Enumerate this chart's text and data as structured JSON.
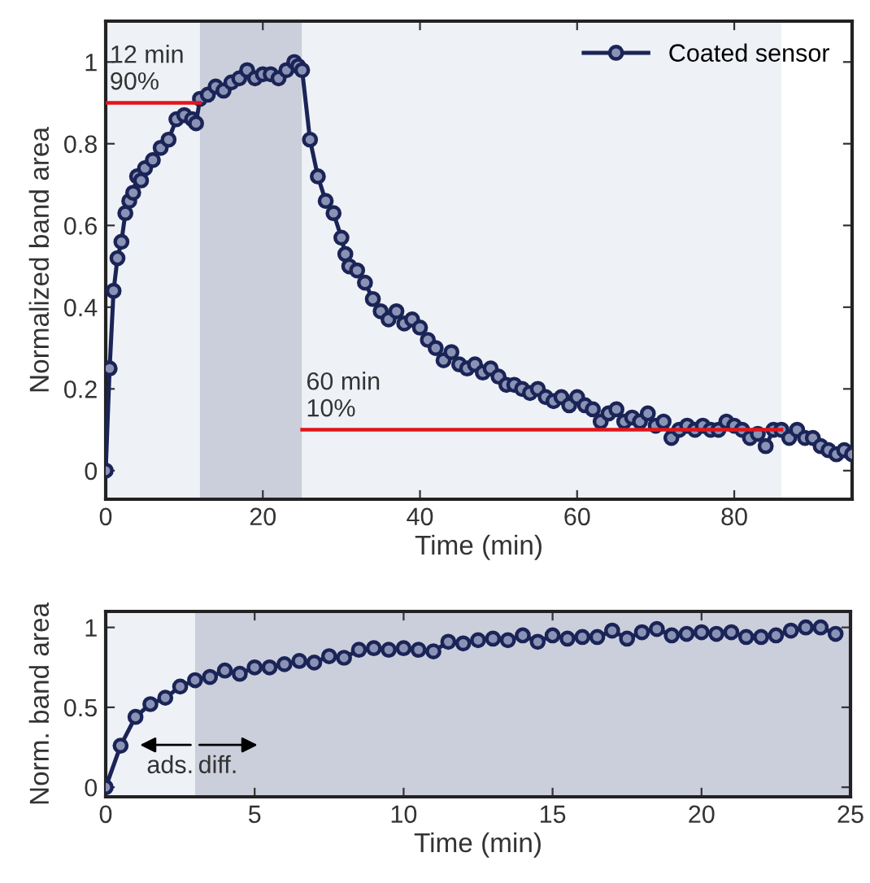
{
  "chart_data": [
    {
      "type": "line",
      "xlabel": "Time (min)",
      "ylabel": "Normalized band area",
      "xlim": [
        0,
        95
      ],
      "ylim": [
        -0.07,
        1.1
      ],
      "xticks": [
        0,
        20,
        40,
        60,
        80
      ],
      "yticks": [
        0,
        0.2,
        0.4,
        0.6,
        0.8,
        1
      ],
      "grid": false,
      "legend": "top right",
      "marker": "circle",
      "line_style": "solid",
      "bands": [
        {
          "axis": "x",
          "from": 0,
          "to": 12,
          "color": "#eef1f6"
        },
        {
          "axis": "x",
          "from": 12,
          "to": 25,
          "color": "#cbcfdc"
        },
        {
          "axis": "x",
          "from": 25,
          "to": 86,
          "color": "#eef1f6"
        }
      ],
      "annotations": [
        {
          "text": "12 min\n90%",
          "x": 0.5,
          "y": 0.92
        },
        {
          "text": "60 min\n10%",
          "x": 25.5,
          "y": 0.12
        }
      ],
      "series": [
        {
          "name": "Coated sensor",
          "color": "#1a2456",
          "x": [
            0,
            0.5,
            1,
            1.5,
            2,
            2.5,
            3,
            3.5,
            4,
            4.5,
            5,
            6,
            7,
            8,
            9,
            10,
            11,
            11.5,
            12,
            13,
            14,
            15,
            16,
            17,
            18,
            19,
            20,
            21,
            22,
            23,
            24,
            24.5,
            25,
            26,
            27,
            28,
            29,
            30,
            30.5,
            31,
            32,
            33,
            34,
            35,
            36,
            37,
            38,
            39,
            40,
            41,
            42,
            43,
            44,
            45,
            46,
            47,
            48,
            49,
            50,
            51,
            52,
            53,
            54,
            55,
            56,
            57,
            58,
            59,
            60,
            61,
            62,
            63,
            64,
            65,
            66,
            67,
            68,
            69,
            70,
            71,
            72,
            73,
            74,
            75,
            76,
            77,
            78,
            79,
            80,
            81,
            82,
            83,
            84,
            85,
            86,
            87,
            88,
            89,
            90,
            91,
            92,
            93,
            94,
            95
          ],
          "values": [
            0,
            0.25,
            0.44,
            0.52,
            0.56,
            0.63,
            0.66,
            0.68,
            0.72,
            0.71,
            0.74,
            0.76,
            0.79,
            0.81,
            0.86,
            0.87,
            0.86,
            0.85,
            0.91,
            0.92,
            0.94,
            0.93,
            0.95,
            0.96,
            0.98,
            0.96,
            0.97,
            0.97,
            0.96,
            0.98,
            1.0,
            0.99,
            0.98,
            0.81,
            0.72,
            0.66,
            0.63,
            0.57,
            0.53,
            0.5,
            0.49,
            0.46,
            0.42,
            0.39,
            0.37,
            0.39,
            0.36,
            0.37,
            0.35,
            0.32,
            0.3,
            0.27,
            0.29,
            0.26,
            0.25,
            0.26,
            0.24,
            0.25,
            0.23,
            0.21,
            0.21,
            0.2,
            0.19,
            0.2,
            0.18,
            0.17,
            0.18,
            0.16,
            0.18,
            0.16,
            0.15,
            0.12,
            0.14,
            0.15,
            0.12,
            0.13,
            0.12,
            0.14,
            0.11,
            0.12,
            0.08,
            0.1,
            0.11,
            0.1,
            0.11,
            0.1,
            0.1,
            0.12,
            0.11,
            0.1,
            0.08,
            0.09,
            0.06,
            0.1,
            0.1,
            0.08,
            0.1,
            0.08,
            0.08,
            0.06,
            0.05,
            0.04,
            0.05,
            0.04
          ]
        },
        {
          "type": "line",
          "marker": "none",
          "color": "#e0161b",
          "x": [
            0,
            12
          ],
          "values": [
            0.9,
            0.9
          ]
        },
        {
          "type": "line",
          "marker": "none",
          "color": "#e0161b",
          "x": [
            25,
            86
          ],
          "values": [
            0.1,
            0.1
          ]
        }
      ]
    },
    {
      "type": "line",
      "xlabel": "Time (min)",
      "ylabel": "Norm. band area",
      "xlim": [
        0,
        25
      ],
      "ylim": [
        -0.06,
        1.1
      ],
      "xticks": [
        0,
        5,
        10,
        15,
        20,
        25
      ],
      "yticks": [
        0,
        0.5,
        1
      ],
      "grid": false,
      "marker": "circle",
      "line_style": "solid",
      "bands": [
        {
          "axis": "x",
          "from": 0,
          "to": 3,
          "color": "#eef1f6"
        },
        {
          "axis": "x",
          "from": 3,
          "to": 25,
          "color": "#cbcfdc"
        }
      ],
      "annotations": [
        "ads.",
        "diff."
      ],
      "series": [
        {
          "color": "#1a2456",
          "x": [
            0,
            0.5,
            1,
            1.5,
            2,
            2.5,
            3,
            3.5,
            4,
            4.5,
            5,
            5.5,
            6,
            6.5,
            7,
            7.5,
            8,
            8.5,
            9,
            9.5,
            10,
            10.5,
            11,
            11.5,
            12,
            12.5,
            13,
            13.5,
            14,
            14.5,
            15,
            15.5,
            16,
            16.5,
            17,
            17.5,
            18,
            18.5,
            19,
            19.5,
            20,
            20.5,
            21,
            21.5,
            22,
            22.5,
            23,
            23.5,
            24,
            24.5
          ],
          "values": [
            0,
            0.26,
            0.44,
            0.52,
            0.56,
            0.63,
            0.67,
            0.69,
            0.73,
            0.71,
            0.75,
            0.75,
            0.77,
            0.79,
            0.78,
            0.82,
            0.81,
            0.86,
            0.87,
            0.86,
            0.87,
            0.86,
            0.85,
            0.91,
            0.9,
            0.92,
            0.93,
            0.92,
            0.95,
            0.91,
            0.95,
            0.93,
            0.94,
            0.94,
            0.98,
            0.93,
            0.97,
            0.99,
            0.95,
            0.96,
            0.97,
            0.96,
            0.97,
            0.94,
            0.94,
            0.95,
            0.98,
            1.0,
            1.0,
            0.96
          ]
        }
      ]
    }
  ]
}
